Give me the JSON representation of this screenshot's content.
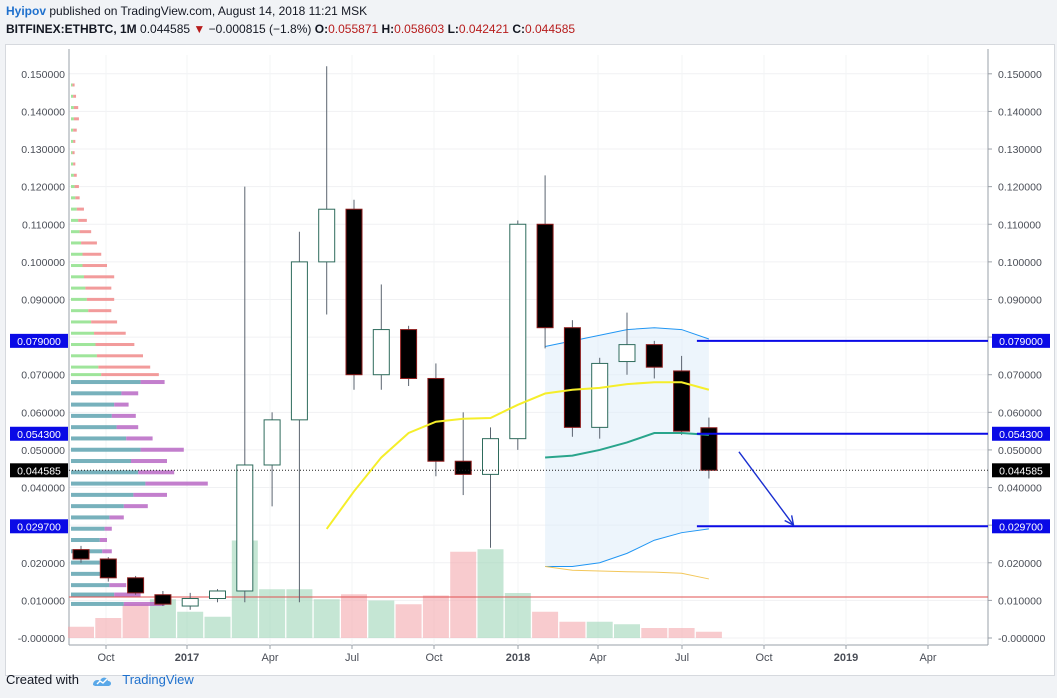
{
  "header": {
    "author": "Hyipov",
    "published": "published on TradingView.com, August 14, 2018 11:21 MSK",
    "symbol": "BITFINEX:ETHBTC, 1M",
    "last": "0.044585",
    "change": "−0.000815 (−1.8%)",
    "o_label": "O:",
    "o": "0.055871",
    "h_label": "H:",
    "h": "0.058603",
    "l_label": "L:",
    "l": "0.042421",
    "c_label": "C:",
    "c": "0.044585"
  },
  "footer": {
    "created_with": "Created with",
    "brand": "TradingView"
  },
  "colors": {
    "up": "#ffffff",
    "down": "#000000",
    "level": "#0a0ae6",
    "sma_fast": "#f5ee2a",
    "sma_slow": "#2aa58c",
    "band": "#2196f3",
    "red_line": "#e05252"
  },
  "chart_data": {
    "type": "candlestick",
    "symbol": "BITFINEX:ETHBTC",
    "interval": "1M",
    "ylim": [
      0,
      0.155
    ],
    "y_ticks": [
      "0.150000",
      "0.140000",
      "0.130000",
      "0.120000",
      "0.110000",
      "0.100000",
      "0.090000",
      "0.080000",
      "0.070000",
      "0.060000",
      "0.050000",
      "0.040000",
      "0.030000",
      "0.020000",
      "0.010000",
      "-0.000000"
    ],
    "x_ticks": [
      "Oct",
      "2017",
      "Apr",
      "Jul",
      "Oct",
      "2018",
      "Apr",
      "Jul",
      "Oct",
      "2019",
      "Apr"
    ],
    "candles": [
      {
        "o": 0.0235,
        "h": 0.0245,
        "l": 0.02,
        "c": 0.021
      },
      {
        "o": 0.021,
        "h": 0.0215,
        "l": 0.015,
        "c": 0.016
      },
      {
        "o": 0.016,
        "h": 0.0165,
        "l": 0.0115,
        "c": 0.012
      },
      {
        "o": 0.0115,
        "h": 0.0125,
        "l": 0.0085,
        "c": 0.009
      },
      {
        "o": 0.0085,
        "h": 0.012,
        "l": 0.0075,
        "c": 0.0105
      },
      {
        "o": 0.0105,
        "h": 0.013,
        "l": 0.0095,
        "c": 0.0125
      },
      {
        "o": 0.0125,
        "h": 0.12,
        "l": 0.0095,
        "c": 0.046
      },
      {
        "o": 0.046,
        "h": 0.06,
        "l": 0.035,
        "c": 0.058
      },
      {
        "o": 0.058,
        "h": 0.108,
        "l": 0.0095,
        "c": 0.1
      },
      {
        "o": 0.1,
        "h": 0.152,
        "l": 0.086,
        "c": 0.114
      },
      {
        "o": 0.114,
        "h": 0.1165,
        "l": 0.066,
        "c": 0.07
      },
      {
        "o": 0.07,
        "h": 0.094,
        "l": 0.066,
        "c": 0.082
      },
      {
        "o": 0.082,
        "h": 0.083,
        "l": 0.067,
        "c": 0.069
      },
      {
        "o": 0.069,
        "h": 0.073,
        "l": 0.043,
        "c": 0.047
      },
      {
        "o": 0.047,
        "h": 0.06,
        "l": 0.038,
        "c": 0.0435
      },
      {
        "o": 0.0435,
        "h": 0.056,
        "l": 0.024,
        "c": 0.053
      },
      {
        "o": 0.053,
        "h": 0.111,
        "l": 0.05,
        "c": 0.11
      },
      {
        "o": 0.11,
        "h": 0.123,
        "l": 0.077,
        "c": 0.0825
      },
      {
        "o": 0.0825,
        "h": 0.0845,
        "l": 0.0535,
        "c": 0.056
      },
      {
        "o": 0.056,
        "h": 0.0745,
        "l": 0.053,
        "c": 0.073
      },
      {
        "o": 0.0735,
        "h": 0.0865,
        "l": 0.07,
        "c": 0.078
      },
      {
        "o": 0.078,
        "h": 0.079,
        "l": 0.069,
        "c": 0.072
      },
      {
        "o": 0.071,
        "h": 0.075,
        "l": 0.054,
        "c": 0.055
      },
      {
        "o": 0.0559,
        "h": 0.0586,
        "l": 0.0424,
        "c": 0.0446
      }
    ],
    "volume_max": 0.036,
    "volume": [
      {
        "v": 0.0045,
        "dir": "down"
      },
      {
        "v": 0.008,
        "dir": "down"
      },
      {
        "v": 0.0135,
        "dir": "down"
      },
      {
        "v": 0.0155,
        "dir": "up"
      },
      {
        "v": 0.0105,
        "dir": "up"
      },
      {
        "v": 0.0085,
        "dir": "up"
      },
      {
        "v": 0.039,
        "dir": "up"
      },
      {
        "v": 0.0195,
        "dir": "up"
      },
      {
        "v": 0.0195,
        "dir": "up"
      },
      {
        "v": 0.0155,
        "dir": "up"
      },
      {
        "v": 0.0175,
        "dir": "down"
      },
      {
        "v": 0.015,
        "dir": "up"
      },
      {
        "v": 0.0135,
        "dir": "down"
      },
      {
        "v": 0.017,
        "dir": "down"
      },
      {
        "v": 0.0345,
        "dir": "down"
      },
      {
        "v": 0.0355,
        "dir": "up"
      },
      {
        "v": 0.018,
        "dir": "up"
      },
      {
        "v": 0.0105,
        "dir": "down"
      },
      {
        "v": 0.0065,
        "dir": "down"
      },
      {
        "v": 0.0065,
        "dir": "up"
      },
      {
        "v": 0.0055,
        "dir": "up"
      },
      {
        "v": 0.004,
        "dir": "down"
      },
      {
        "v": 0.004,
        "dir": "down"
      },
      {
        "v": 0.0025,
        "dir": "down"
      }
    ],
    "sma_fast": [
      {
        "i": 9,
        "y": 0.029
      },
      {
        "i": 10,
        "y": 0.039
      },
      {
        "i": 11,
        "y": 0.048
      },
      {
        "i": 12,
        "y": 0.0545
      },
      {
        "i": 13,
        "y": 0.0575
      },
      {
        "i": 14,
        "y": 0.0583
      },
      {
        "i": 15,
        "y": 0.0585
      },
      {
        "i": 16,
        "y": 0.062
      },
      {
        "i": 17,
        "y": 0.065
      },
      {
        "i": 18,
        "y": 0.066
      },
      {
        "i": 19,
        "y": 0.0665
      },
      {
        "i": 20,
        "y": 0.0675
      },
      {
        "i": 21,
        "y": 0.068
      },
      {
        "i": 22,
        "y": 0.068
      },
      {
        "i": 23,
        "y": 0.066
      }
    ],
    "sma_slow": [
      {
        "i": 17,
        "y": 0.048
      },
      {
        "i": 18,
        "y": 0.0485
      },
      {
        "i": 19,
        "y": 0.05
      },
      {
        "i": 20,
        "y": 0.052
      },
      {
        "i": 21,
        "y": 0.0545
      },
      {
        "i": 22,
        "y": 0.0545
      },
      {
        "i": 23,
        "y": 0.054
      }
    ],
    "band_upper": [
      {
        "i": 17,
        "y": 0.0775
      },
      {
        "i": 18,
        "y": 0.079
      },
      {
        "i": 19,
        "y": 0.0805
      },
      {
        "i": 20,
        "y": 0.082
      },
      {
        "i": 21,
        "y": 0.0825
      },
      {
        "i": 22,
        "y": 0.082
      },
      {
        "i": 23,
        "y": 0.0795
      }
    ],
    "band_lower": [
      {
        "i": 17,
        "y": 0.019
      },
      {
        "i": 18,
        "y": 0.019
      },
      {
        "i": 19,
        "y": 0.02
      },
      {
        "i": 20,
        "y": 0.0225
      },
      {
        "i": 21,
        "y": 0.026
      },
      {
        "i": 22,
        "y": 0.028
      },
      {
        "i": 23,
        "y": 0.029
      }
    ],
    "sma_small": [
      {
        "i": 17,
        "y": 0.019
      },
      {
        "i": 18,
        "y": 0.018
      },
      {
        "i": 19,
        "y": 0.0178
      },
      {
        "i": 20,
        "y": 0.0176
      },
      {
        "i": 21,
        "y": 0.0175
      },
      {
        "i": 22,
        "y": 0.0172
      },
      {
        "i": 23,
        "y": 0.0157
      }
    ],
    "levels": [
      {
        "value": 0.079,
        "label": "0.079000",
        "color": "#0a0ae6"
      },
      {
        "value": 0.0543,
        "label": "0.054300",
        "color": "#0a0ae6"
      },
      {
        "value": 0.0297,
        "label": "0.029700",
        "color": "#0a0ae6"
      }
    ],
    "last_price": {
      "value": 0.044585,
      "label": "0.044585"
    },
    "red_line": 0.0109,
    "arrow": {
      "from_i": 24.1,
      "from_y": 0.0495,
      "to_i": 26.1,
      "to_y": 0.03
    },
    "volume_profile": [
      {
        "y": 0.147,
        "buy": 0.2,
        "sell": 0.3
      },
      {
        "y": 0.144,
        "buy": 0.3,
        "sell": 0.4
      },
      {
        "y": 0.141,
        "buy": 0.4,
        "sell": 0.6
      },
      {
        "y": 0.138,
        "buy": 0.4,
        "sell": 0.7
      },
      {
        "y": 0.135,
        "buy": 0.3,
        "sell": 0.5
      },
      {
        "y": 0.132,
        "buy": 0.3,
        "sell": 0.3
      },
      {
        "y": 0.129,
        "buy": 0.2,
        "sell": 0.3
      },
      {
        "y": 0.126,
        "buy": 0.3,
        "sell": 0.3
      },
      {
        "y": 0.123,
        "buy": 0.4,
        "sell": 0.4
      },
      {
        "y": 0.12,
        "buy": 0.5,
        "sell": 0.6
      },
      {
        "y": 0.117,
        "buy": 0.6,
        "sell": 0.6
      },
      {
        "y": 0.114,
        "buy": 0.8,
        "sell": 1.0
      },
      {
        "y": 0.111,
        "buy": 1.0,
        "sell": 1.2
      },
      {
        "y": 0.108,
        "buy": 1.2,
        "sell": 1.6
      },
      {
        "y": 0.105,
        "buy": 1.4,
        "sell": 2.2
      },
      {
        "y": 0.102,
        "buy": 1.6,
        "sell": 2.6
      },
      {
        "y": 0.099,
        "buy": 1.6,
        "sell": 3.4
      },
      {
        "y": 0.096,
        "buy": 1.8,
        "sell": 4.2
      },
      {
        "y": 0.093,
        "buy": 2.0,
        "sell": 3.6
      },
      {
        "y": 0.09,
        "buy": 2.2,
        "sell": 3.8
      },
      {
        "y": 0.087,
        "buy": 2.4,
        "sell": 3.2
      },
      {
        "y": 0.084,
        "buy": 2.8,
        "sell": 3.6
      },
      {
        "y": 0.081,
        "buy": 3.2,
        "sell": 4.4
      },
      {
        "y": 0.078,
        "buy": 3.4,
        "sell": 5.4
      },
      {
        "y": 0.075,
        "buy": 3.6,
        "sell": 6.4
      },
      {
        "y": 0.072,
        "buy": 3.8,
        "sell": 7.2
      },
      {
        "y": 0.07,
        "buy": 4.2,
        "sell": 8.0
      }
    ],
    "volume_profile_lower": [
      {
        "y": 0.068,
        "a": 5.8,
        "b": 7.8
      },
      {
        "y": 0.065,
        "a": 4.2,
        "b": 5.6
      },
      {
        "y": 0.062,
        "a": 3.6,
        "b": 4.8
      },
      {
        "y": 0.059,
        "a": 3.4,
        "b": 5.4
      },
      {
        "y": 0.056,
        "a": 3.8,
        "b": 5.6
      },
      {
        "y": 0.053,
        "a": 4.6,
        "b": 6.8
      },
      {
        "y": 0.05,
        "a": 5.8,
        "b": 9.4
      },
      {
        "y": 0.047,
        "a": 5.0,
        "b": 8.0
      },
      {
        "y": 0.044,
        "a": 5.6,
        "b": 8.6
      },
      {
        "y": 0.041,
        "a": 6.2,
        "b": 11.4
      },
      {
        "y": 0.038,
        "a": 5.2,
        "b": 8.0
      },
      {
        "y": 0.035,
        "a": 4.4,
        "b": 6.4
      },
      {
        "y": 0.032,
        "a": 3.2,
        "b": 4.4
      },
      {
        "y": 0.029,
        "a": 2.8,
        "b": 3.4
      },
      {
        "y": 0.026,
        "a": 2.4,
        "b": 3.0
      },
      {
        "y": 0.023,
        "a": 2.6,
        "b": 3.4
      },
      {
        "y": 0.02,
        "a": 2.4,
        "b": 3.0
      },
      {
        "y": 0.017,
        "a": 2.8,
        "b": 3.6
      },
      {
        "y": 0.014,
        "a": 3.2,
        "b": 4.6
      },
      {
        "y": 0.0115,
        "a": 3.6,
        "b": 5.8
      },
      {
        "y": 0.009,
        "a": 4.4,
        "b": 7.8
      }
    ]
  }
}
